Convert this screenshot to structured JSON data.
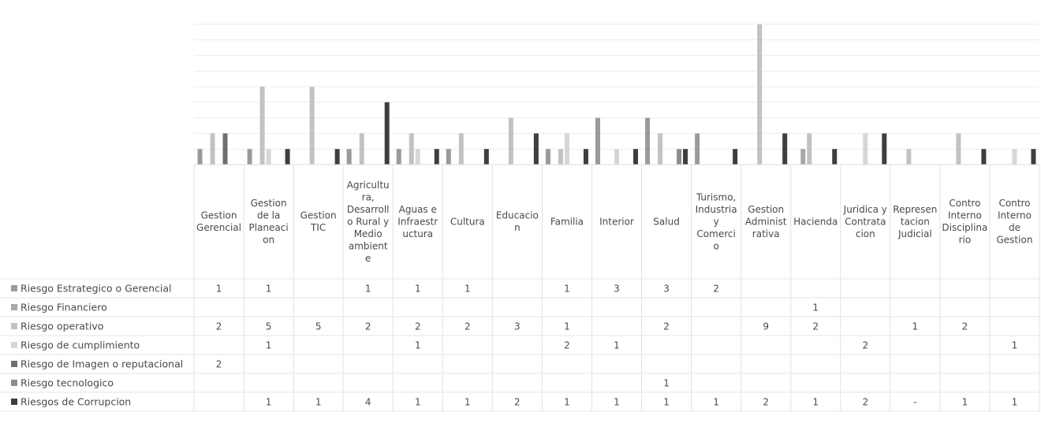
{
  "chart_data": {
    "type": "bar",
    "title": "",
    "xlabel": "",
    "ylabel": "",
    "ylim": [
      0,
      9
    ],
    "grid": true,
    "legend": "data-table-left",
    "categories": [
      [
        "Gestion",
        "Gerencial"
      ],
      [
        "Gestion",
        "de la",
        "Planeaci",
        "on"
      ],
      [
        "Gestion",
        "TIC"
      ],
      [
        "Agricultu",
        "ra,",
        "Desarroll",
        "o Rural y",
        "Medio",
        "ambient",
        "e"
      ],
      [
        "Aguas e",
        "Infraestr",
        "uctura"
      ],
      [
        "Cultura"
      ],
      [
        "Educacio",
        "n"
      ],
      [
        "Familia"
      ],
      [
        "Interior"
      ],
      [
        "Salud"
      ],
      [
        "Turismo,",
        "Industria",
        "y",
        "Comerci",
        "o"
      ],
      [
        "Gestion",
        "Administ",
        "rativa"
      ],
      [
        "Hacienda"
      ],
      [
        "Juridica y",
        "Contrata",
        "cion"
      ],
      [
        "Represen",
        "tacion",
        "Judicial"
      ],
      [
        "Contro",
        "Interno",
        "Disciplina",
        "rio"
      ],
      [
        "Contro",
        "Interno",
        "de",
        "Gestion"
      ]
    ],
    "series": [
      {
        "name": "Riesgo Estrategico o Gerencial",
        "color": "#9a9a9a",
        "values": [
          1,
          1,
          null,
          1,
          1,
          1,
          null,
          1,
          3,
          3,
          2,
          null,
          null,
          null,
          null,
          null,
          null
        ]
      },
      {
        "name": "Riesgo Financiero",
        "color": "#a8a8a8",
        "values": [
          null,
          null,
          null,
          null,
          null,
          null,
          null,
          null,
          null,
          null,
          null,
          null,
          1,
          null,
          null,
          null,
          null
        ]
      },
      {
        "name": "Riesgo operativo",
        "color": "#c2c2c2",
        "values": [
          2,
          5,
          5,
          2,
          2,
          2,
          3,
          1,
          null,
          2,
          null,
          9,
          2,
          null,
          1,
          2,
          null
        ]
      },
      {
        "name": "Riesgo de cumplimiento",
        "color": "#d6d6d6",
        "values": [
          null,
          1,
          null,
          null,
          1,
          null,
          null,
          2,
          1,
          null,
          null,
          null,
          null,
          2,
          null,
          null,
          1
        ]
      },
      {
        "name": "Riesgo de Imagen o reputacional",
        "color": "#6f6f6f",
        "values": [
          2,
          null,
          null,
          null,
          null,
          null,
          null,
          null,
          null,
          null,
          null,
          null,
          null,
          null,
          null,
          null,
          null
        ]
      },
      {
        "name": "Riesgo tecnologico",
        "color": "#8c8c8c",
        "values": [
          null,
          null,
          null,
          null,
          null,
          null,
          null,
          null,
          null,
          1,
          null,
          null,
          null,
          null,
          null,
          null,
          null
        ]
      },
      {
        "name": "Riesgos de Corrupcion",
        "color": "#3e3e3e",
        "values": [
          null,
          1,
          1,
          4,
          1,
          1,
          2,
          1,
          1,
          1,
          1,
          2,
          1,
          2,
          "-",
          1,
          1
        ]
      }
    ]
  }
}
